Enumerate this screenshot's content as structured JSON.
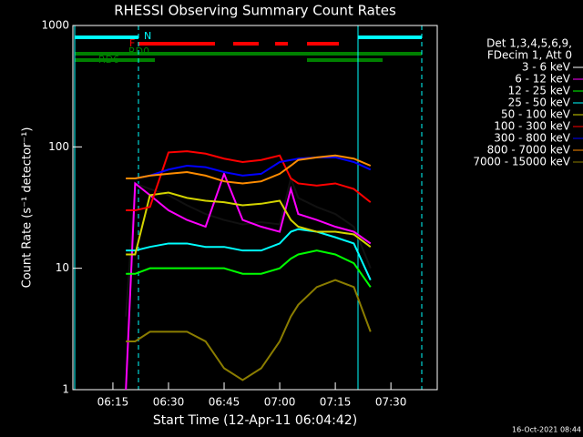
{
  "chart_data": {
    "type": "line",
    "title": "RHESSI Observing Summary Count Rates",
    "xlabel": "Start Time (12-Apr-11 06:04:42)",
    "ylabel": "Count Rate (s⁻¹ detector⁻¹)",
    "legend_header": [
      "Det 1,3,4,5,6,9,",
      "FDecim 1, Att 0"
    ],
    "timestamp": "16-Oct-2021 08:44",
    "flags": [
      "N",
      "F",
      "RD0",
      "RD6"
    ],
    "log_y": true,
    "xlim": [
      4.2,
      102.5
    ],
    "xticks": [
      {
        "value": 15,
        "label": "06:15"
      },
      {
        "value": 30,
        "label": "06:30"
      },
      {
        "value": 45,
        "label": "06:45"
      },
      {
        "value": 60,
        "label": "07:00"
      },
      {
        "value": 75,
        "label": "07:15"
      },
      {
        "value": 90,
        "label": "07:30"
      }
    ],
    "ylim": [
      1,
      1000
    ],
    "yticks": [
      1,
      10,
      100,
      1000
    ],
    "x": [
      18.5,
      21,
      25,
      30,
      35,
      40,
      45,
      50,
      55,
      60,
      63,
      65,
      70,
      75,
      80,
      84.5
    ],
    "series": [
      {
        "name": "3 - 6 keV",
        "color": "#000000",
        "values": [
          4,
          50,
          45,
          40,
          33,
          28,
          25,
          23,
          24,
          23,
          55,
          38,
          32,
          28,
          22,
          10
        ]
      },
      {
        "name": "6 - 12 keV",
        "color": "#ff00ff",
        "values": [
          1,
          50,
          40,
          30,
          25,
          22,
          60,
          25,
          22,
          20,
          45,
          28,
          25,
          22,
          20,
          16
        ]
      },
      {
        "name": "12 - 25 keV",
        "color": "#00ff00",
        "values": [
          9,
          9,
          10,
          10,
          10,
          10,
          10,
          9,
          9,
          10,
          12,
          13,
          14,
          13,
          11,
          7
        ]
      },
      {
        "name": "25 - 50 keV",
        "color": "#00ffff",
        "values": [
          14,
          14,
          15,
          16,
          16,
          15,
          15,
          14,
          14,
          16,
          20,
          21,
          20,
          18,
          16,
          8
        ]
      },
      {
        "name": "50 - 100 keV",
        "color": "#d4d400",
        "values": [
          13,
          13,
          40,
          42,
          38,
          36,
          35,
          33,
          34,
          36,
          25,
          22,
          20,
          20,
          19,
          15
        ]
      },
      {
        "name": "100 - 300 keV",
        "color": "#ff0000",
        "values": [
          30,
          30,
          32,
          90,
          92,
          88,
          80,
          75,
          78,
          85,
          55,
          50,
          48,
          50,
          45,
          35
        ]
      },
      {
        "name": "300 - 800 keV",
        "color": "#0000ff",
        "values": [
          55,
          55,
          58,
          65,
          70,
          68,
          62,
          58,
          60,
          75,
          78,
          80,
          82,
          82,
          75,
          65
        ]
      },
      {
        "name": "800 - 7000 keV",
        "color": "#ff8c00",
        "values": [
          55,
          55,
          58,
          60,
          62,
          58,
          52,
          50,
          52,
          60,
          70,
          78,
          82,
          85,
          80,
          70
        ]
      },
      {
        "name": "7000 - 15000 keV",
        "color": "#8b7d00",
        "values": [
          2.5,
          2.5,
          3,
          3,
          3,
          2.5,
          1.5,
          1.2,
          1.5,
          2.5,
          4,
          5,
          7,
          8,
          7,
          3
        ]
      }
    ]
  }
}
